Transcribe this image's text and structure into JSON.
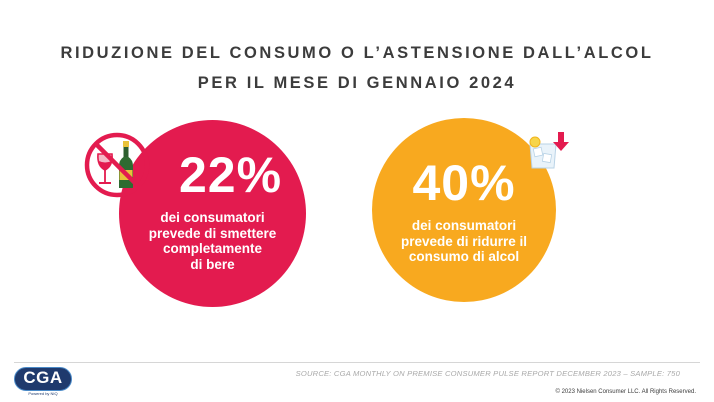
{
  "title": {
    "line1": "RIDUZIONE DEL CONSUMO O L’ASTENSIONE DALL’ALCOL",
    "line2": "PER IL MESE DI GENNAIO 2024"
  },
  "stats": [
    {
      "percent": "22%",
      "lines": [
        "dei consumatori",
        "prevede di smettere",
        "completamente",
        "di bere"
      ],
      "color": "#e31b4f",
      "icon": "no-alcohol-icon"
    },
    {
      "percent": "40%",
      "lines": [
        "dei consumatori",
        "prevede di ridurre il",
        "consumo di alcol"
      ],
      "color": "#f8a91f",
      "icon": "ice-drink-down-icon"
    }
  ],
  "footer": {
    "source": "SOURCE: CGA MONTHLY ON PREMISE CONSUMER PULSE REPORT DECEMBER 2023 – SAMPLE: 750",
    "copyright": "© 2023 Nielsen Consumer LLC. All Rights Reserved.",
    "logo": "CGA",
    "logo_tag": "Powered by NIQ"
  }
}
